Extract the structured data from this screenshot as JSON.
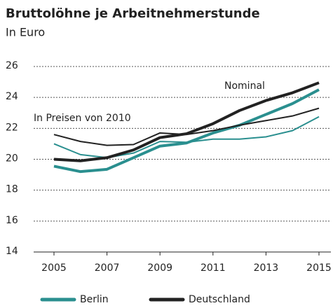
{
  "chart_data": {
    "type": "line",
    "title": "Bruttolöhne je Arbeitnehmerstunde",
    "subtitle": "In Euro",
    "annotations": [
      "Nominal",
      "In Preisen von 2010"
    ],
    "x": [
      2005,
      2006,
      2007,
      2008,
      2009,
      2010,
      2011,
      2012,
      2013,
      2014,
      2015
    ],
    "xlim": [
      2005,
      2015
    ],
    "xticks": [
      2005,
      2007,
      2009,
      2011,
      2013,
      2015
    ],
    "ylim": [
      14,
      26
    ],
    "yticks": [
      14,
      16,
      18,
      20,
      22,
      24,
      26
    ],
    "grid": true,
    "legend": "bottom",
    "series": [
      {
        "name": "Berlin",
        "color": "#2a8f8f",
        "nominal": [
          19.55,
          19.2,
          19.35,
          20.1,
          20.85,
          21.05,
          21.7,
          22.2,
          22.9,
          23.6,
          24.5
        ],
        "real": [
          21.0,
          20.3,
          20.1,
          20.4,
          21.15,
          21.1,
          21.3,
          21.3,
          21.45,
          21.85,
          22.75
        ]
      },
      {
        "name": "Deutschland",
        "color": "#222222",
        "nominal": [
          20.0,
          19.9,
          20.1,
          20.6,
          21.4,
          21.65,
          22.3,
          23.15,
          23.8,
          24.3,
          24.95
        ],
        "real": [
          21.6,
          21.15,
          20.9,
          20.95,
          21.7,
          21.6,
          21.85,
          22.2,
          22.5,
          22.8,
          23.3
        ]
      }
    ]
  }
}
